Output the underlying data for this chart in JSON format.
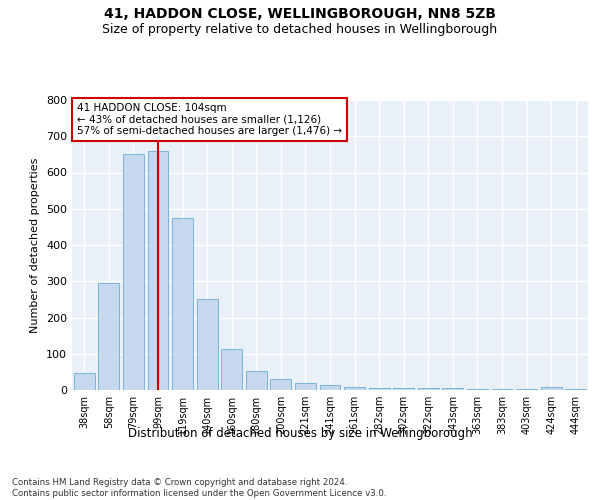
{
  "title1": "41, HADDON CLOSE, WELLINGBOROUGH, NN8 5ZB",
  "title2": "Size of property relative to detached houses in Wellingborough",
  "xlabel": "Distribution of detached houses by size in Wellingborough",
  "ylabel": "Number of detached properties",
  "categories": [
    "38sqm",
    "58sqm",
    "79sqm",
    "99sqm",
    "119sqm",
    "140sqm",
    "160sqm",
    "180sqm",
    "200sqm",
    "221sqm",
    "241sqm",
    "261sqm",
    "282sqm",
    "302sqm",
    "322sqm",
    "343sqm",
    "363sqm",
    "383sqm",
    "403sqm",
    "424sqm",
    "444sqm"
  ],
  "values": [
    47,
    294,
    650,
    660,
    475,
    251,
    113,
    52,
    29,
    18,
    14,
    7,
    5,
    5,
    6,
    5,
    2,
    2,
    2,
    8,
    2
  ],
  "bar_color": "#c5d8ed",
  "bar_edge_color": "#6aaed6",
  "vline_x": 3.0,
  "vline_color": "#cc0000",
  "annotation_text": "41 HADDON CLOSE: 104sqm\n← 43% of detached houses are smaller (1,126)\n57% of semi-detached houses are larger (1,476) →",
  "annotation_box_color": "#ffffff",
  "annotation_box_edge": "#cc0000",
  "footnote": "Contains HM Land Registry data © Crown copyright and database right 2024.\nContains public sector information licensed under the Open Government Licence v3.0.",
  "ylim": [
    0,
    800
  ],
  "yticks": [
    0,
    100,
    200,
    300,
    400,
    500,
    600,
    700,
    800
  ],
  "bg_color": "#eaf0f8",
  "grid_color": "#ffffff",
  "title1_fontsize": 10,
  "title2_fontsize": 9
}
